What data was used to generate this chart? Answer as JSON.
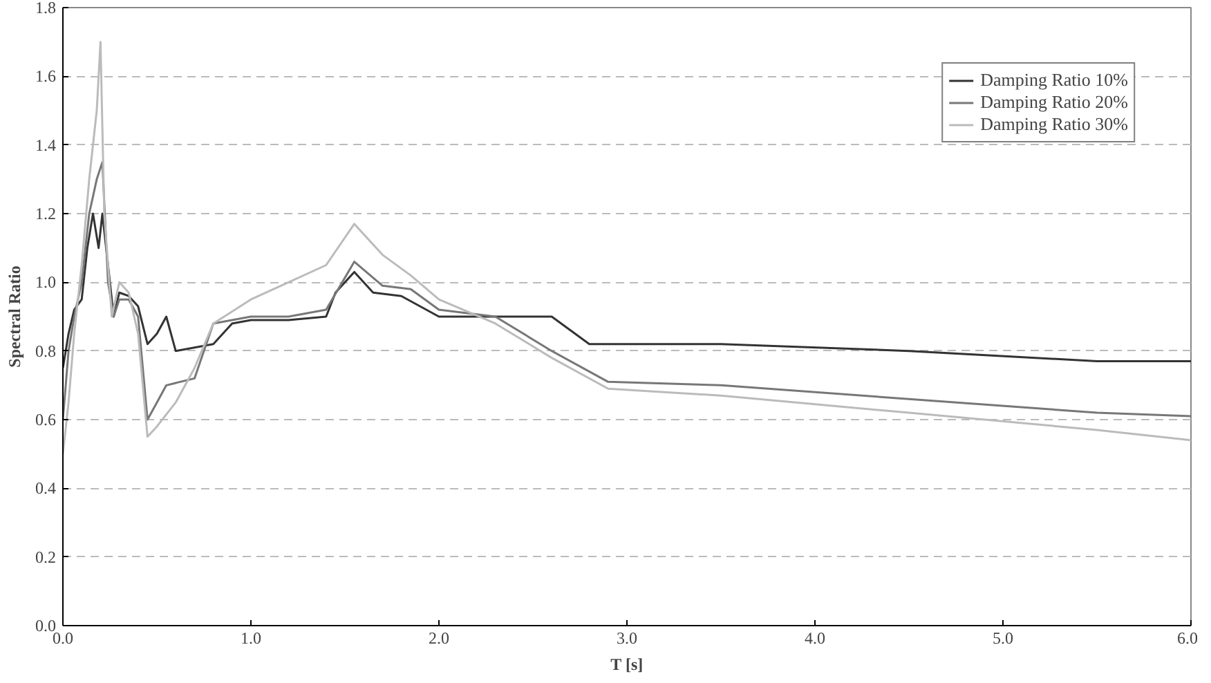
{
  "chart_data": {
    "type": "line",
    "xlabel": "T [s]",
    "ylabel": "Spectral Ratio",
    "xlim": [
      0,
      6
    ],
    "ylim": [
      0,
      1.8
    ],
    "xticks": [
      {
        "value": 0,
        "label": "0.0"
      },
      {
        "value": 1,
        "label": "1.0"
      },
      {
        "value": 2,
        "label": "2.0"
      },
      {
        "value": 3,
        "label": "3.0"
      },
      {
        "value": 4,
        "label": "4.0"
      },
      {
        "value": 5,
        "label": "5.0"
      },
      {
        "value": 6,
        "label": "6.0"
      }
    ],
    "yticks": [
      {
        "value": 0,
        "label": "0.0"
      },
      0.2,
      0.4,
      0.6,
      0.8,
      {
        "value": 1,
        "label": "1.0"
      },
      1.2,
      1.4,
      1.6,
      1.8
    ],
    "grid": "y",
    "legend": "top right",
    "marker": "none",
    "line_style": "solid",
    "series": [
      {
        "name": "Damping Ratio 10%",
        "color": "#333333",
        "x": [
          0,
          0.03,
          0.06,
          0.1,
          0.13,
          0.16,
          0.19,
          0.21,
          0.24,
          0.27,
          0.3,
          0.35,
          0.4,
          0.45,
          0.5,
          0.55,
          0.6,
          0.8,
          0.9,
          1.0,
          1.2,
          1.4,
          1.45,
          1.55,
          1.65,
          1.8,
          2.0,
          2.2,
          2.6,
          2.8,
          3.5,
          4.5,
          5.5,
          6.0
        ],
        "values": [
          0.75,
          0.85,
          0.92,
          0.95,
          1.1,
          1.2,
          1.1,
          1.2,
          1.05,
          0.9,
          0.97,
          0.96,
          0.93,
          0.82,
          0.85,
          0.9,
          0.8,
          0.82,
          0.88,
          0.89,
          0.89,
          0.9,
          0.97,
          1.03,
          0.97,
          0.96,
          0.9,
          0.9,
          0.9,
          0.82,
          0.82,
          0.8,
          0.77,
          0.77
        ]
      },
      {
        "name": "Damping Ratio 20%",
        "color": "#777777",
        "x": [
          0,
          0.03,
          0.06,
          0.1,
          0.14,
          0.18,
          0.21,
          0.24,
          0.27,
          0.3,
          0.35,
          0.4,
          0.45,
          0.5,
          0.55,
          0.7,
          0.8,
          1.0,
          1.2,
          1.4,
          1.55,
          1.7,
          1.85,
          2.0,
          2.3,
          2.6,
          2.9,
          3.5,
          4.5,
          5.5,
          6.0
        ],
        "values": [
          0.6,
          0.8,
          0.9,
          1.0,
          1.2,
          1.3,
          1.35,
          1.0,
          0.9,
          0.95,
          0.95,
          0.9,
          0.6,
          0.65,
          0.7,
          0.72,
          0.88,
          0.9,
          0.9,
          0.92,
          1.06,
          0.99,
          0.98,
          0.92,
          0.9,
          0.8,
          0.71,
          0.7,
          0.66,
          0.62,
          0.61
        ]
      },
      {
        "name": "Damping Ratio 30%",
        "color": "#bbbbbb",
        "x": [
          0,
          0.03,
          0.06,
          0.1,
          0.14,
          0.18,
          0.2,
          0.22,
          0.26,
          0.3,
          0.35,
          0.4,
          0.45,
          0.5,
          0.6,
          0.7,
          0.8,
          1.0,
          1.2,
          1.4,
          1.55,
          1.7,
          1.85,
          2.0,
          2.3,
          2.6,
          2.9,
          3.5,
          4.5,
          5.5,
          6.0
        ],
        "values": [
          0.5,
          0.65,
          0.85,
          1.05,
          1.3,
          1.5,
          1.7,
          1.2,
          0.9,
          1.0,
          0.97,
          0.85,
          0.55,
          0.58,
          0.65,
          0.75,
          0.88,
          0.95,
          1.0,
          1.05,
          1.17,
          1.08,
          1.02,
          0.95,
          0.88,
          0.78,
          0.69,
          0.67,
          0.62,
          0.57,
          0.54
        ]
      }
    ]
  }
}
